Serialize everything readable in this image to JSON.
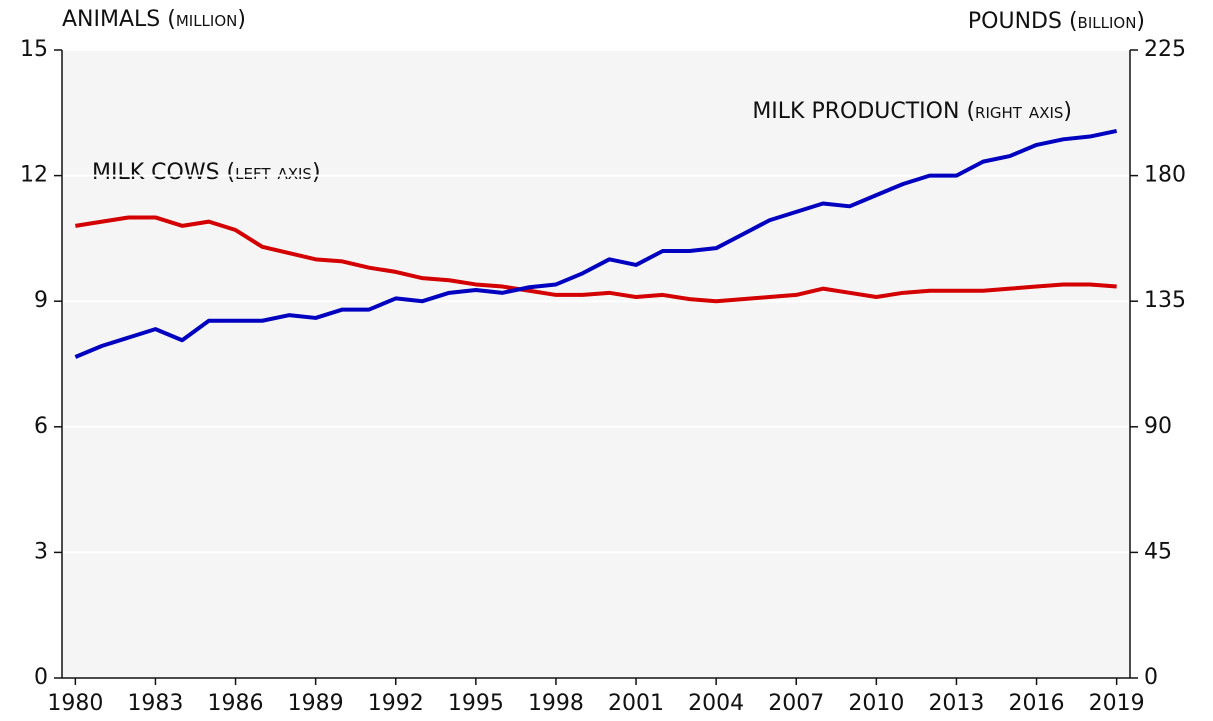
{
  "chart_data": {
    "type": "line",
    "y_label": "ANIMALS (million)",
    "y2_label": "POUNDS (billion)",
    "annotations": [
      "MILK COWS (left axis)",
      "MILK PRODUCTION (right axis)"
    ],
    "x": [
      1980,
      1981,
      1982,
      1983,
      1984,
      1985,
      1986,
      1987,
      1988,
      1989,
      1990,
      1991,
      1992,
      1993,
      1994,
      1995,
      1996,
      1997,
      1998,
      1999,
      2000,
      2001,
      2002,
      2003,
      2004,
      2005,
      2006,
      2007,
      2008,
      2009,
      2010,
      2011,
      2012,
      2013,
      2014,
      2015,
      2016,
      2017,
      2018,
      2019
    ],
    "xlim": [
      1979.5,
      2019.5
    ],
    "xticks": [
      1980,
      1983,
      1986,
      1989,
      1992,
      1995,
      1998,
      2001,
      2004,
      2007,
      2010,
      2013,
      2016,
      2019
    ],
    "ylim": [
      0,
      15
    ],
    "yticks": [
      0,
      3,
      6,
      9,
      12,
      15
    ],
    "y2lim": [
      0,
      225
    ],
    "y2ticks": [
      0,
      45,
      90,
      135,
      180,
      225
    ],
    "grid": true,
    "series": [
      {
        "name": "MILK COWS",
        "color": "#d40000",
        "values": [
          10.8,
          10.9,
          11.0,
          11.0,
          10.8,
          10.9,
          10.7,
          10.3,
          10.15,
          10.0,
          9.95,
          9.8,
          9.7,
          9.55,
          9.5,
          9.4,
          9.35,
          9.25,
          9.15,
          9.15,
          9.2,
          9.1,
          9.15,
          9.05,
          9.0,
          9.05,
          9.1,
          9.15,
          9.3,
          9.2,
          9.1,
          9.2,
          9.25,
          9.25,
          9.25,
          9.3,
          9.35,
          9.4,
          9.4,
          9.35
        ]
      },
      {
        "name": "MILK PRODUCTION",
        "color": "#0000c0",
        "axis": "y2",
        "values": [
          115,
          119,
          122,
          125,
          121,
          128,
          128,
          128,
          130,
          129,
          132,
          132,
          136,
          135,
          138,
          139,
          138,
          140,
          141,
          145,
          150,
          148,
          153,
          153,
          154,
          159,
          164,
          167,
          170,
          169,
          173,
          177,
          180,
          180,
          185,
          187,
          191,
          193,
          194,
          196
        ]
      }
    ]
  }
}
